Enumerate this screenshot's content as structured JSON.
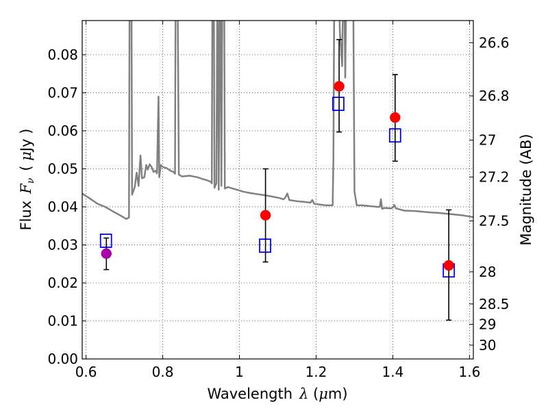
{
  "chart_data": {
    "type": "scatter",
    "xlabel": {
      "prefix": "Wavelength",
      "symbol": "λ",
      "unit_open": " (",
      "unit_mu": "μ",
      "unit_rest": "m)"
    },
    "ylabel": {
      "prefix": "Flux",
      "symbol_main": "F",
      "symbol_sub": "ν",
      "unit_open": "( ",
      "unit_mu": "μ",
      "unit_rest": "Jy )"
    },
    "y2label": "Magnitude (AB)",
    "xlim": [
      0.59,
      1.61
    ],
    "ylim": [
      0.0,
      0.089
    ],
    "grid": true,
    "x_ticks": [
      {
        "value": 0.6,
        "label": "0.6"
      },
      {
        "value": 0.8,
        "label": "0.8"
      },
      {
        "value": 1.0,
        "label": "1"
      },
      {
        "value": 1.2,
        "label": "1.2"
      },
      {
        "value": 1.4,
        "label": "1.4"
      },
      {
        "value": 1.6,
        "label": "1.6"
      }
    ],
    "y_ticks": [
      {
        "value": 0.0,
        "label": "0.00"
      },
      {
        "value": 0.01,
        "label": "0.01"
      },
      {
        "value": 0.02,
        "label": "0.02"
      },
      {
        "value": 0.03,
        "label": "0.03"
      },
      {
        "value": 0.04,
        "label": "0.04"
      },
      {
        "value": 0.05,
        "label": "0.05"
      },
      {
        "value": 0.06,
        "label": "0.06"
      },
      {
        "value": 0.07,
        "label": "0.07"
      },
      {
        "value": 0.08,
        "label": "0.08"
      }
    ],
    "y2_ticks": [
      {
        "mag": 26.6,
        "label": "26.6"
      },
      {
        "mag": 26.8,
        "label": "26.8"
      },
      {
        "mag": 27.0,
        "label": "27"
      },
      {
        "mag": 27.2,
        "label": "27.2"
      },
      {
        "mag": 27.5,
        "label": "27.5"
      },
      {
        "mag": 28.0,
        "label": "28"
      },
      {
        "mag": 28.5,
        "label": "28.5"
      },
      {
        "mag": 29.0,
        "label": "29"
      },
      {
        "mag": 30.0,
        "label": "30"
      }
    ],
    "series": [
      {
        "name": "model spectrum",
        "kind": "line",
        "color": "#808080",
        "points": [
          [
            0.59,
            0.0435
          ],
          [
            0.61,
            0.0422
          ],
          [
            0.63,
            0.0408
          ],
          [
            0.65,
            0.04
          ],
          [
            0.67,
            0.0388
          ],
          [
            0.69,
            0.0377
          ],
          [
            0.705,
            0.0368
          ],
          [
            0.712,
            0.0372
          ],
          [
            0.714,
            0.11
          ],
          [
            0.718,
            0.11
          ],
          [
            0.72,
            0.0432
          ],
          [
            0.727,
            0.0452
          ],
          [
            0.732,
            0.049
          ],
          [
            0.737,
            0.0455
          ],
          [
            0.742,
            0.0535
          ],
          [
            0.746,
            0.0475
          ],
          [
            0.752,
            0.0478
          ],
          [
            0.757,
            0.051
          ],
          [
            0.761,
            0.0498
          ],
          [
            0.766,
            0.0512
          ],
          [
            0.771,
            0.0505
          ],
          [
            0.776,
            0.0492
          ],
          [
            0.781,
            0.0495
          ],
          [
            0.785,
            0.0488
          ],
          [
            0.789,
            0.069
          ],
          [
            0.791,
            0.0478
          ],
          [
            0.795,
            0.051
          ],
          [
            0.8,
            0.0505
          ],
          [
            0.81,
            0.0502
          ],
          [
            0.82,
            0.0495
          ],
          [
            0.828,
            0.0492
          ],
          [
            0.832,
            0.0487
          ],
          [
            0.834,
            0.11
          ],
          [
            0.838,
            0.11
          ],
          [
            0.842,
            0.0485
          ],
          [
            0.85,
            0.048
          ],
          [
            0.87,
            0.0482
          ],
          [
            0.89,
            0.0478
          ],
          [
            0.905,
            0.0473
          ],
          [
            0.915,
            0.047
          ],
          [
            0.925,
            0.0466
          ],
          [
            0.928,
            0.0462
          ],
          [
            0.93,
            0.11
          ],
          [
            0.933,
            0.11
          ],
          [
            0.935,
            0.045
          ],
          [
            0.94,
            0.0462
          ],
          [
            0.943,
            0.11
          ],
          [
            0.946,
            0.0445
          ],
          [
            0.95,
            0.11
          ],
          [
            0.953,
            0.0455
          ],
          [
            0.956,
            0.11
          ],
          [
            0.96,
            0.11
          ],
          [
            0.962,
            0.0448
          ],
          [
            0.97,
            0.0452
          ],
          [
            0.99,
            0.0446
          ],
          [
            1.01,
            0.044
          ],
          [
            1.03,
            0.0436
          ],
          [
            1.05,
            0.0433
          ],
          [
            1.07,
            0.043
          ],
          [
            1.09,
            0.0426
          ],
          [
            1.105,
            0.0423
          ],
          [
            1.115,
            0.042
          ],
          [
            1.12,
            0.0425
          ],
          [
            1.125,
            0.0435
          ],
          [
            1.13,
            0.0418
          ],
          [
            1.15,
            0.0415
          ],
          [
            1.17,
            0.0413
          ],
          [
            1.185,
            0.0411
          ],
          [
            1.19,
            0.0418
          ],
          [
            1.195,
            0.0408
          ],
          [
            1.21,
            0.0406
          ],
          [
            1.225,
            0.0404
          ],
          [
            1.24,
            0.0404
          ],
          [
            1.243,
            0.0404
          ],
          [
            1.245,
            0.052
          ],
          [
            1.248,
            0.11
          ],
          [
            1.256,
            0.11
          ],
          [
            1.262,
            0.086
          ],
          [
            1.268,
            0.077
          ],
          [
            1.272,
            0.11
          ],
          [
            1.276,
            0.074
          ],
          [
            1.28,
            0.11
          ],
          [
            1.296,
            0.11
          ],
          [
            1.3,
            0.044
          ],
          [
            1.306,
            0.0404
          ],
          [
            1.32,
            0.0404
          ],
          [
            1.34,
            0.0402
          ],
          [
            1.36,
            0.04
          ],
          [
            1.366,
            0.04
          ],
          [
            1.369,
            0.042
          ],
          [
            1.372,
            0.0395
          ],
          [
            1.38,
            0.0397
          ],
          [
            1.395,
            0.0396
          ],
          [
            1.4,
            0.0398
          ],
          [
            1.404,
            0.0405
          ],
          [
            1.408,
            0.0396
          ],
          [
            1.43,
            0.039
          ],
          [
            1.46,
            0.0389
          ],
          [
            1.49,
            0.0386
          ],
          [
            1.52,
            0.0384
          ],
          [
            1.55,
            0.0381
          ],
          [
            1.58,
            0.0378
          ],
          [
            1.61,
            0.0373
          ]
        ]
      },
      {
        "name": "model photometry",
        "kind": "open-square",
        "color": "#0000ff",
        "points": [
          [
            0.652,
            0.031
          ],
          [
            1.067,
            0.0297
          ],
          [
            1.258,
            0.067
          ],
          [
            1.406,
            0.0587
          ],
          [
            1.546,
            0.0232
          ]
        ]
      },
      {
        "name": "observed (detection)",
        "kind": "filled-circle",
        "color": "#ff0000",
        "points": [
          {
            "x": 1.068,
            "y": 0.0378,
            "ylo": 0.0255,
            "yhi": 0.05
          },
          {
            "x": 1.26,
            "y": 0.0717,
            "ylo": 0.0597,
            "yhi": 0.084
          },
          {
            "x": 1.406,
            "y": 0.0635,
            "ylo": 0.052,
            "yhi": 0.0748
          },
          {
            "x": 1.546,
            "y": 0.0246,
            "ylo": 0.0102,
            "yhi": 0.0392
          }
        ]
      },
      {
        "name": "observed (optical)",
        "kind": "filled-circle",
        "color": "#aa00aa",
        "points": [
          {
            "x": 0.653,
            "y": 0.0277,
            "ylo": 0.0235,
            "yhi": 0.0318
          }
        ]
      }
    ]
  }
}
